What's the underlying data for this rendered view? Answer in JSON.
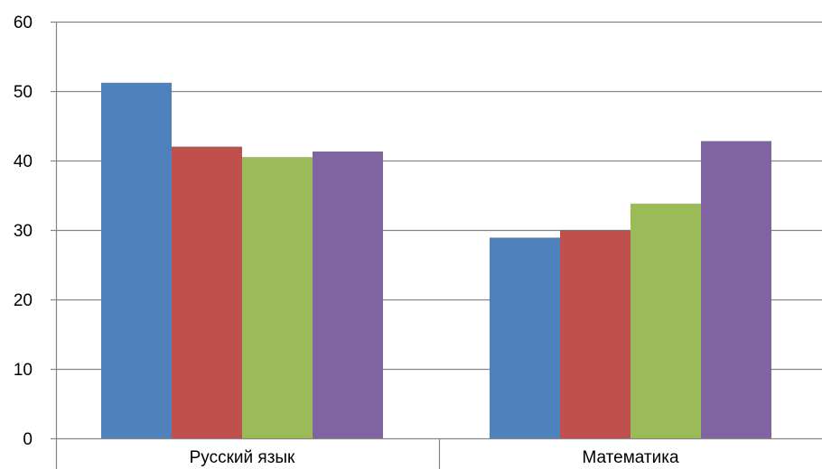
{
  "chart_data": {
    "type": "bar",
    "categories": [
      "Русский язык",
      "Математика"
    ],
    "series": [
      {
        "values": [
          51.2,
          28.9
        ]
      },
      {
        "values": [
          42.0,
          30.0
        ]
      },
      {
        "values": [
          40.5,
          33.8
        ]
      },
      {
        "values": [
          41.3,
          42.8
        ]
      }
    ],
    "colors": [
      "#4f81bd",
      "#c0504d",
      "#9bbb59",
      "#8064a2"
    ],
    "ylim": [
      0,
      60
    ],
    "yticks": [
      0,
      10,
      20,
      30,
      40,
      50,
      60
    ],
    "grid": true,
    "legend": "none",
    "title": "",
    "xlabel": "",
    "ylabel": ""
  }
}
